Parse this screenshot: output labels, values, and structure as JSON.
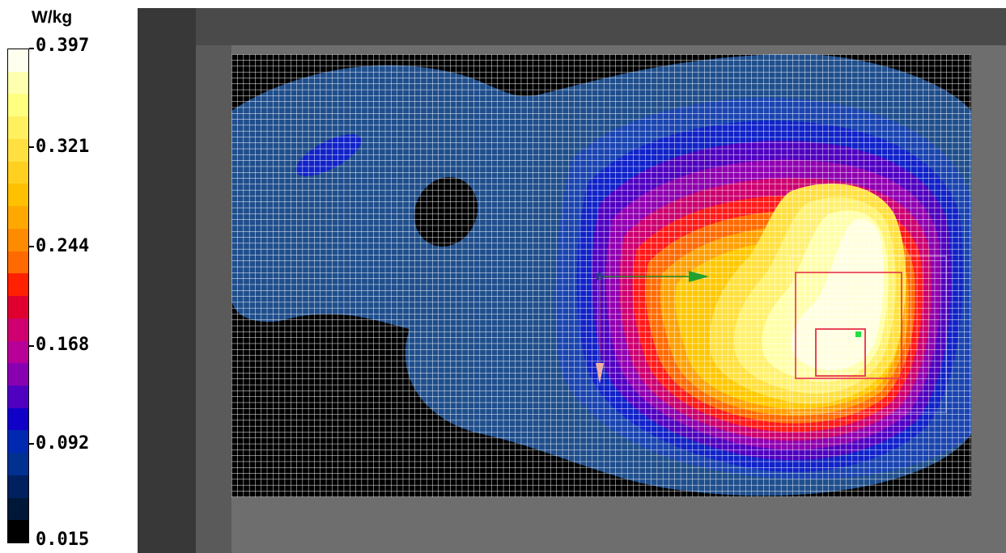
{
  "legend": {
    "unit": "W/kg",
    "ticks": [
      "0.397",
      "0.321",
      "0.244",
      "0.168",
      "0.092",
      "0.015"
    ],
    "colors": [
      "#fffff0",
      "#ffffb0",
      "#ffff80",
      "#fff060",
      "#ffe040",
      "#ffd020",
      "#ffc000",
      "#ffa800",
      "#ff8c00",
      "#ff6a00",
      "#ff2000",
      "#e00030",
      "#d00070",
      "#b80098",
      "#8800b0",
      "#5000c0",
      "#1000c8",
      "#0028b0",
      "#003090",
      "#002060",
      "#001838",
      "#000000"
    ]
  },
  "viewport": {
    "background": "#6e6e6e"
  },
  "chart_data": {
    "type": "heatmap",
    "unit": "W/kg",
    "min": 0.015,
    "max": 0.397,
    "colorbar_ticks": [
      0.397,
      0.321,
      0.244,
      0.168,
      0.092,
      0.015
    ]
  }
}
